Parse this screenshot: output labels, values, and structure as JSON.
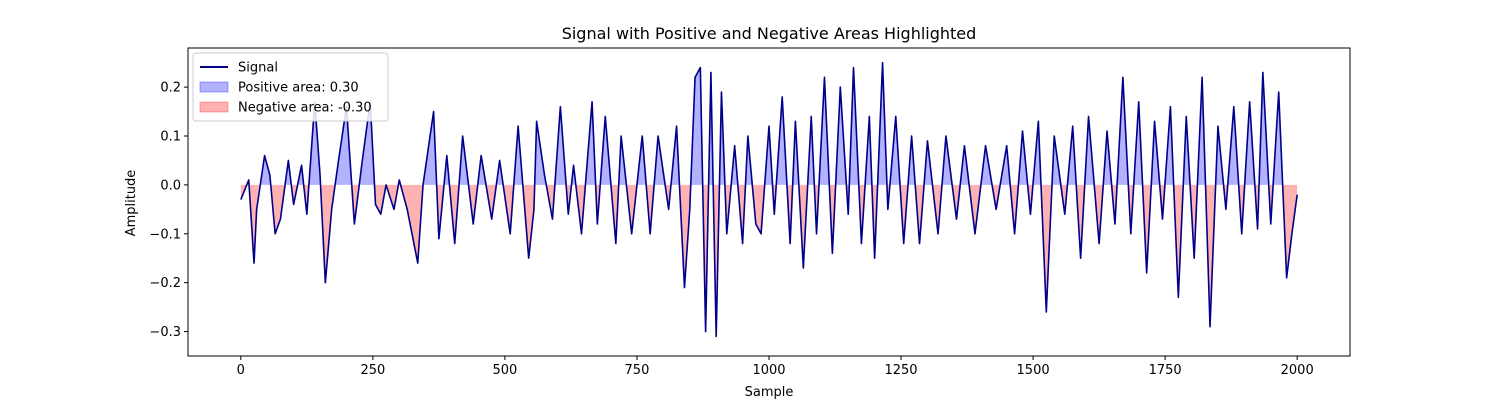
{
  "chart_data": {
    "type": "area",
    "title": "Signal with Positive and Negative Areas Highlighted",
    "xlabel": "Sample",
    "ylabel": "Amplitude",
    "xlim": [
      -100,
      2100
    ],
    "ylim": [
      -0.35,
      0.28
    ],
    "xticks": [
      0,
      250,
      500,
      750,
      1000,
      1250,
      1500,
      1750,
      2000
    ],
    "yticks": [
      -0.3,
      -0.2,
      -0.1,
      0.0,
      0.1,
      0.2
    ],
    "xtick_labels": [
      "0",
      "250",
      "500",
      "750",
      "1000",
      "1250",
      "1500",
      "1750",
      "2000"
    ],
    "ytick_labels": [
      "−0.3",
      "−0.2",
      "−0.1",
      "0.0",
      "0.1",
      "0.2"
    ],
    "grid": false,
    "legend_position": "top-left",
    "legend": [
      {
        "label": "Signal",
        "kind": "line",
        "color": "#00008b"
      },
      {
        "label": "Positive area: 0.30",
        "kind": "patch",
        "color": "#0000ff"
      },
      {
        "label": "Negative area: -0.30",
        "kind": "patch",
        "color": "#ff0000"
      }
    ],
    "series": [
      {
        "name": "Signal",
        "color": "#00008b",
        "x": [
          0,
          15,
          25,
          30,
          45,
          55,
          65,
          75,
          90,
          100,
          115,
          125,
          140,
          150,
          160,
          172,
          185,
          200,
          215,
          230,
          245,
          255,
          265,
          275,
          290,
          300,
          315,
          335,
          345,
          365,
          375,
          390,
          405,
          420,
          440,
          455,
          475,
          490,
          510,
          525,
          545,
          555,
          560,
          575,
          590,
          605,
          620,
          630,
          645,
          665,
          675,
          690,
          710,
          720,
          740,
          760,
          775,
          790,
          810,
          825,
          840,
          850,
          860,
          870,
          880,
          890,
          900,
          910,
          920,
          935,
          950,
          960,
          975,
          985,
          1000,
          1010,
          1025,
          1040,
          1050,
          1065,
          1080,
          1090,
          1105,
          1120,
          1135,
          1150,
          1160,
          1175,
          1190,
          1200,
          1215,
          1225,
          1240,
          1255,
          1270,
          1285,
          1300,
          1320,
          1335,
          1355,
          1370,
          1390,
          1410,
          1430,
          1450,
          1465,
          1480,
          1495,
          1510,
          1525,
          1540,
          1560,
          1575,
          1590,
          1605,
          1625,
          1640,
          1655,
          1670,
          1685,
          1700,
          1715,
          1730,
          1745,
          1760,
          1775,
          1790,
          1805,
          1820,
          1835,
          1850,
          1865,
          1880,
          1895,
          1910,
          1925,
          1935,
          1950,
          1965,
          1980,
          1990,
          2000
        ],
        "y": [
          -0.03,
          0.01,
          -0.16,
          -0.05,
          0.06,
          0.02,
          -0.1,
          -0.07,
          0.05,
          -0.04,
          0.04,
          -0.06,
          0.17,
          0.02,
          -0.2,
          -0.05,
          0.05,
          0.16,
          -0.08,
          0.05,
          0.17,
          -0.04,
          -0.06,
          0.0,
          -0.05,
          0.01,
          -0.05,
          -0.16,
          0.0,
          0.15,
          -0.11,
          0.06,
          -0.12,
          0.1,
          -0.08,
          0.06,
          -0.07,
          0.05,
          -0.1,
          0.12,
          -0.15,
          -0.05,
          0.13,
          0.02,
          -0.07,
          0.16,
          -0.06,
          0.04,
          -0.1,
          0.17,
          -0.08,
          0.14,
          -0.12,
          0.1,
          -0.1,
          0.1,
          -0.1,
          0.1,
          -0.05,
          0.12,
          -0.21,
          -0.05,
          0.22,
          0.24,
          -0.3,
          0.23,
          -0.31,
          0.19,
          -0.1,
          0.08,
          -0.12,
          0.1,
          -0.08,
          -0.1,
          0.12,
          -0.06,
          0.18,
          -0.12,
          0.13,
          -0.17,
          0.14,
          -0.1,
          0.22,
          -0.14,
          0.2,
          -0.06,
          0.24,
          -0.12,
          0.14,
          -0.15,
          0.25,
          -0.05,
          0.14,
          -0.12,
          0.1,
          -0.12,
          0.09,
          -0.1,
          0.1,
          -0.07,
          0.08,
          -0.1,
          0.08,
          -0.05,
          0.08,
          -0.1,
          0.11,
          -0.06,
          0.13,
          -0.26,
          0.1,
          -0.06,
          0.12,
          -0.15,
          0.14,
          -0.12,
          0.11,
          -0.08,
          0.22,
          -0.1,
          0.17,
          -0.18,
          0.13,
          -0.07,
          0.16,
          -0.23,
          0.14,
          -0.15,
          0.22,
          -0.29,
          0.12,
          -0.05,
          0.16,
          -0.1,
          0.17,
          -0.09,
          0.23,
          -0.08,
          0.19,
          -0.19,
          -0.1,
          -0.02
        ]
      }
    ]
  }
}
